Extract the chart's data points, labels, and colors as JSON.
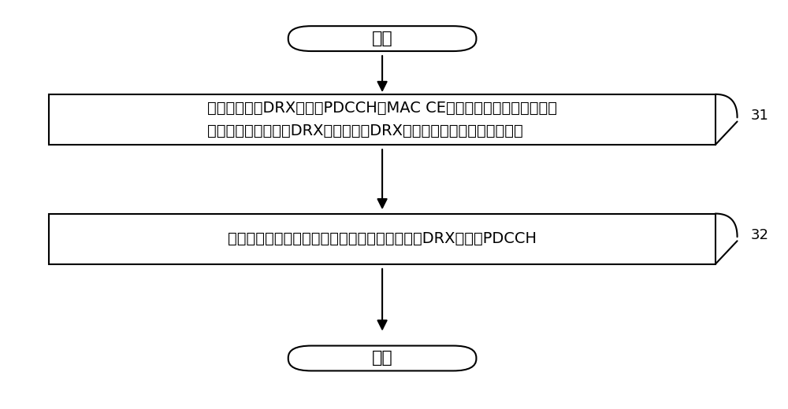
{
  "bg_color": "#ffffff",
  "border_color": "#000000",
  "text_color": "#000000",
  "arrow_color": "#000000",
  "lw": 1.5,
  "start_label": "开始",
  "end_label": "结束",
  "box1_line1": "终端在第一组DRX模式的PDCCH或MAC CE上，接收网络发送的一用于",
  "box1_line2": "指示是否针对第二组DRX模式的目标DRX模式进行监听的监听指示消息",
  "box2_text": "根据所述监听指示消息，监听或不监听所述目标DRX模式的PDCCH",
  "label31": "31",
  "label32": "32",
  "fontsize_main": 14,
  "fontsize_label": 13,
  "fontsize_startend": 16
}
